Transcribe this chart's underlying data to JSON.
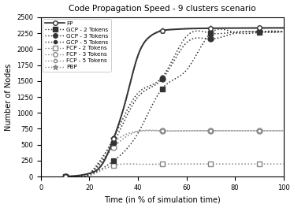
{
  "title": "Code Propagation Speed - 9 clusters scenario",
  "xlabel": "Time (in % of simulation time)",
  "ylabel": "Number of Nodes",
  "xlim": [
    0,
    100
  ],
  "ylim": [
    0,
    2500
  ],
  "xticks": [
    0,
    20,
    40,
    60,
    80,
    100
  ],
  "yticks": [
    0,
    250,
    500,
    750,
    1000,
    1250,
    1500,
    1750,
    2000,
    2250,
    2500
  ],
  "fp_x": [
    10,
    15,
    20,
    25,
    30,
    35,
    40,
    45,
    50,
    55,
    60,
    65,
    70,
    80,
    90,
    100
  ],
  "fp_y": [
    5,
    15,
    50,
    180,
    600,
    1200,
    1900,
    2200,
    2290,
    2310,
    2320,
    2325,
    2328,
    2330,
    2332,
    2333
  ],
  "gcp2_x": [
    10,
    20,
    30,
    40,
    50,
    60,
    70,
    80,
    90,
    100
  ],
  "gcp2_y": [
    5,
    30,
    250,
    680,
    1380,
    1670,
    2250,
    2260,
    2265,
    2268
  ],
  "gcp3_x": [
    10,
    20,
    30,
    40,
    50,
    60,
    70,
    80,
    90,
    100
  ],
  "gcp3_y": [
    5,
    40,
    530,
    1250,
    1530,
    2100,
    2160,
    2250,
    2270,
    2275
  ],
  "gcp5_x": [
    10,
    20,
    30,
    40,
    50,
    60,
    70,
    80,
    90,
    100
  ],
  "gcp5_y": [
    5,
    45,
    610,
    1310,
    1560,
    2200,
    2250,
    2268,
    2273,
    2275
  ],
  "fcp2_x": [
    10,
    20,
    30,
    40,
    50,
    60,
    70,
    80,
    90,
    100
  ],
  "fcp2_y": [
    0,
    10,
    175,
    195,
    197,
    198,
    198,
    198,
    198,
    198
  ],
  "fcp3_x": [
    10,
    20,
    30,
    40,
    50,
    60,
    70,
    80,
    90,
    100
  ],
  "fcp3_y": [
    0,
    35,
    460,
    710,
    718,
    720,
    720,
    720,
    720,
    720
  ],
  "fcp5_x": [
    10,
    20,
    30,
    40,
    50,
    60,
    70,
    80,
    90,
    100
  ],
  "fcp5_y": [
    0,
    40,
    530,
    710,
    718,
    720,
    720,
    720,
    720,
    720
  ],
  "pbp_x": [
    10,
    15,
    20,
    25,
    30,
    35,
    40,
    45,
    50,
    55,
    60,
    65,
    70,
    80,
    90,
    100
  ],
  "pbp_y": [
    5,
    15,
    50,
    175,
    590,
    1190,
    1890,
    2195,
    2285,
    2308,
    2318,
    2323,
    2326,
    2328,
    2330,
    2332
  ],
  "color_dark": "#333333",
  "color_mid": "#888888",
  "background_color": "#ffffff"
}
